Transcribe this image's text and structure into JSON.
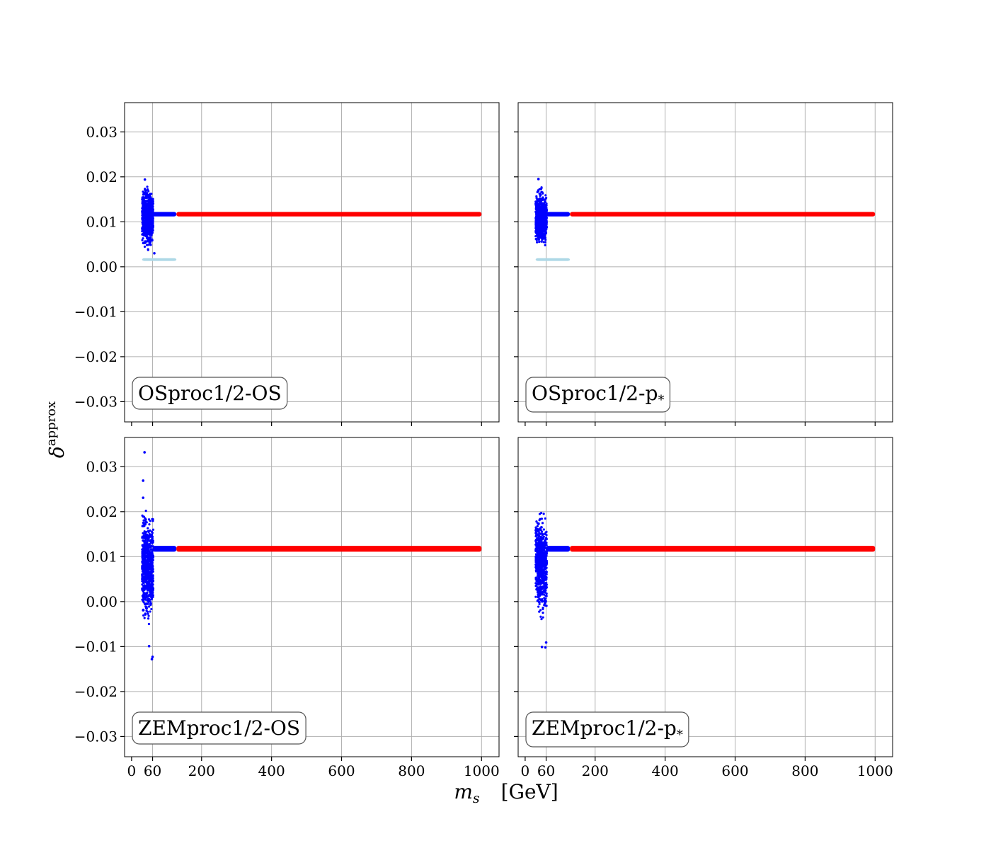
{
  "chart_data": {
    "type": "scatter",
    "layout": "2x2 grid, shared x and y axes",
    "xlabel": {
      "symbol": "m",
      "subscript": "s",
      "unit": "[GeV]"
    },
    "ylabel": {
      "symbol": "δ",
      "superscript": "approx"
    },
    "xlim": [
      -20,
      1050
    ],
    "ylim": [
      -0.0345,
      0.0365
    ],
    "xticks": [
      0,
      60,
      200,
      400,
      600,
      800,
      1000
    ],
    "xtick_labels": [
      "0",
      "60",
      "200",
      "400",
      "600",
      "800",
      "1000"
    ],
    "yticks": [
      0.03,
      0.02,
      0.01,
      0.0,
      -0.01,
      -0.02,
      -0.03
    ],
    "ytick_labels": [
      "0.03",
      "0.02",
      "0.01",
      "0.00",
      "−0.01",
      "−0.02",
      "−0.03"
    ],
    "grid": true,
    "colors": {
      "blue": "#0000ff",
      "red": "#ff0000",
      "light_blue": "#add8e6",
      "grid": "#b0b0b0",
      "box_edge": "#555555"
    },
    "panels": [
      {
        "label": {
          "text": "OSproc1/2-OS",
          "sub": ""
        },
        "series": [
          {
            "color": "blue",
            "kind": "band",
            "x_range": [
              30,
              62
            ],
            "y_envelope": [
              [
                30,
                0.004,
                0.018
              ],
              [
                40,
                0.003,
                0.019
              ],
              [
                50,
                0.003,
                0.018
              ],
              [
                62,
                0.005,
                0.017
              ]
            ]
          },
          {
            "color": "blue",
            "kind": "strip",
            "x_range": [
              60,
              128
            ],
            "y_range": [
              0.0112,
              0.0122
            ]
          },
          {
            "color": "red",
            "kind": "strip",
            "x_range": [
              128,
              1000
            ],
            "y_range": [
              0.0112,
              0.0122
            ]
          },
          {
            "color": "light_blue",
            "kind": "strip",
            "x_range": [
              30,
              128
            ],
            "y_range": [
              0.0013,
              0.0019
            ]
          },
          {
            "color": "blue",
            "kind": "outliers",
            "points": [
              [
                38,
                0.0194
              ],
              [
                65,
                0.003
              ]
            ]
          }
        ]
      },
      {
        "label": {
          "text": "OSproc1/2-p",
          "sub": "*"
        },
        "series": [
          {
            "color": "blue",
            "kind": "band",
            "x_range": [
              30,
              62
            ],
            "y_envelope": [
              [
                30,
                0.004,
                0.018
              ],
              [
                40,
                0.003,
                0.019
              ],
              [
                50,
                0.003,
                0.018
              ],
              [
                62,
                0.005,
                0.017
              ]
            ]
          },
          {
            "color": "blue",
            "kind": "strip",
            "x_range": [
              60,
              128
            ],
            "y_range": [
              0.0112,
              0.0122
            ]
          },
          {
            "color": "red",
            "kind": "strip",
            "x_range": [
              128,
              1000
            ],
            "y_range": [
              0.0112,
              0.0122
            ]
          },
          {
            "color": "light_blue",
            "kind": "strip",
            "x_range": [
              30,
              128
            ],
            "y_range": [
              0.0013,
              0.0019
            ]
          },
          {
            "color": "blue",
            "kind": "outliers",
            "points": [
              [
                38,
                0.0195
              ]
            ]
          }
        ]
      },
      {
        "label": {
          "text": "ZEMproc1/2-OS",
          "sub": ""
        },
        "series": [
          {
            "color": "blue",
            "kind": "band",
            "x_range": [
              30,
              62
            ],
            "y_envelope": [
              [
                30,
                -0.004,
                0.021
              ],
              [
                36,
                -0.006,
                0.022
              ],
              [
                45,
                -0.007,
                0.021
              ],
              [
                55,
                -0.005,
                0.02
              ],
              [
                62,
                -0.003,
                0.02
              ]
            ]
          },
          {
            "color": "blue",
            "kind": "strip",
            "x_range": [
              60,
              128
            ],
            "y_range": [
              0.0111,
              0.0124
            ]
          },
          {
            "color": "red",
            "kind": "strip",
            "x_range": [
              128,
              1000
            ],
            "y_range": [
              0.0111,
              0.0124
            ]
          },
          {
            "color": "blue",
            "kind": "outliers",
            "points": [
              [
                37,
                0.0332
              ],
              [
                33,
                0.0269
              ],
              [
                33,
                0.0231
              ],
              [
                50,
                -0.0099
              ],
              [
                60,
                -0.0123
              ],
              [
                58,
                -0.0128
              ]
            ]
          }
        ]
      },
      {
        "label": {
          "text": "ZEMproc1/2-p",
          "sub": "*"
        },
        "series": [
          {
            "color": "blue",
            "kind": "band",
            "x_range": [
              30,
              62
            ],
            "y_envelope": [
              [
                30,
                -0.003,
                0.022
              ],
              [
                38,
                -0.006,
                0.022
              ],
              [
                48,
                -0.005,
                0.021
              ],
              [
                62,
                -0.004,
                0.02
              ]
            ]
          },
          {
            "color": "blue",
            "kind": "strip",
            "x_range": [
              60,
              128
            ],
            "y_range": [
              0.0111,
              0.0124
            ]
          },
          {
            "color": "red",
            "kind": "strip",
            "x_range": [
              128,
              1000
            ],
            "y_range": [
              0.0111,
              0.0124
            ]
          },
          {
            "color": "blue",
            "kind": "outliers",
            "points": [
              [
                48,
                -0.0101
              ],
              [
                58,
                -0.0102
              ],
              [
                60,
                -0.0091
              ]
            ]
          }
        ]
      }
    ]
  }
}
